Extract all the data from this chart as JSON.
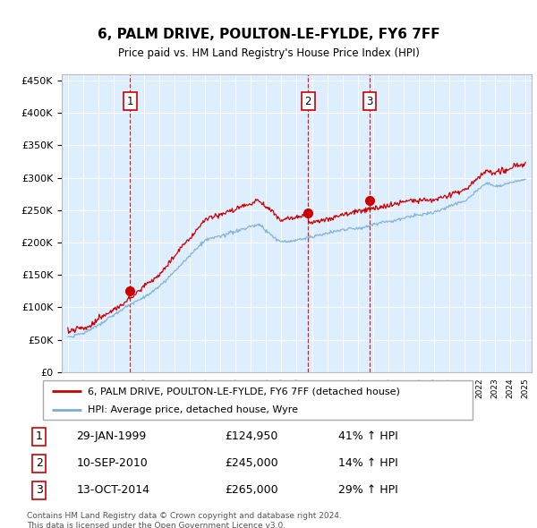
{
  "title": "6, PALM DRIVE, POULTON-LE-FYLDE, FY6 7FF",
  "subtitle": "Price paid vs. HM Land Registry's House Price Index (HPI)",
  "red_color": "#cc0000",
  "blue_color": "#7aadd4",
  "plot_bg_color": "#ddeeff",
  "grid_color": "#ffffff",
  "legend_label_red": "6, PALM DRIVE, POULTON-LE-FYLDE, FY6 7FF (detached house)",
  "legend_label_blue": "HPI: Average price, detached house, Wyre",
  "footer": "Contains HM Land Registry data © Crown copyright and database right 2024.\nThis data is licensed under the Open Government Licence v3.0.",
  "ylim": [
    0,
    460000
  ],
  "yticks": [
    0,
    50000,
    100000,
    150000,
    200000,
    250000,
    300000,
    350000,
    400000,
    450000
  ],
  "sale_year_vals": [
    1999.08,
    2010.75,
    2014.79
  ],
  "sale_price_vals": [
    124950,
    245000,
    265000
  ],
  "sale_labels": [
    "1",
    "2",
    "3"
  ],
  "sale_info": [
    [
      "1",
      "29-JAN-1999",
      "£124,950",
      "41% ↑ HPI"
    ],
    [
      "2",
      "10-SEP-2010",
      "£245,000",
      "14% ↑ HPI"
    ],
    [
      "3",
      "13-OCT-2014",
      "£265,000",
      "29% ↑ HPI"
    ]
  ]
}
